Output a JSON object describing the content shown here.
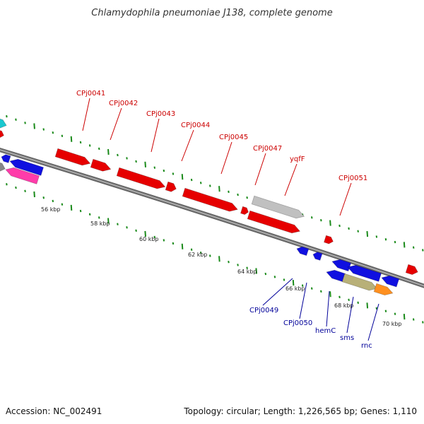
{
  "title": "Chlamydophila pneumoniae J138, complete genome",
  "footer": {
    "accession": "Accession: NC_002491",
    "topology": "Topology: circular; Length: 1,226,565 bp; Genes: 1,110"
  },
  "colors": {
    "forward_gene": "#e60000",
    "reverse_gene": "#1010e0",
    "forward_label": "#cc0000",
    "reverse_label": "#000099",
    "backbone": "#888888",
    "minor_tick": "#1a8a1a",
    "major_tick": "#1a8a1a",
    "unnamed_feature": "#c0c0c0",
    "rna_feature_a": "#b8b078",
    "rna_feature_b": "#ff9020",
    "cyan_feature": "#19c8d0",
    "magenta_feature": "#ff3caa"
  },
  "scale_labels": [
    "56 kbp",
    "58 kbp",
    "60 kbp",
    "62 kbp",
    "64 kbp",
    "66 kbp",
    "68 kbp",
    "70 kbp"
  ],
  "forward_labels": [
    "CPj0041",
    "CPj0042",
    "CPj0043",
    "CPj0044",
    "CPj0045",
    "CPj0047",
    "yqfF",
    "CPj0051"
  ],
  "reverse_labels": [
    "CPj0049",
    "CPj0050",
    "hemC",
    "sms",
    "rnc"
  ]
}
